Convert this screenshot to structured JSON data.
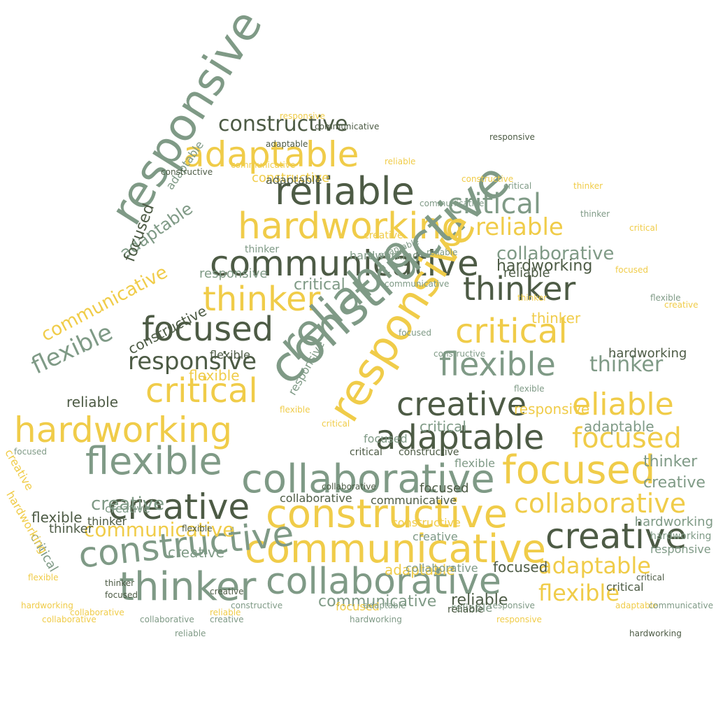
{
  "colors": {
    "background": "#ffffff",
    "dark": "#4d5b45",
    "sage": "#7f9a86",
    "gold": "#f0cc49"
  },
  "words": [
    {
      "text": "communicative",
      "color": "dark"
    },
    {
      "text": "hardworking",
      "color": "gold"
    },
    {
      "text": "responsive",
      "color": "sage"
    },
    {
      "text": "reliable",
      "color": "dark"
    },
    {
      "text": "adaptable",
      "color": "gold"
    },
    {
      "text": "constructive",
      "color": "dark"
    },
    {
      "text": "critical",
      "color": "sage"
    },
    {
      "text": "reliable",
      "color": "gold"
    },
    {
      "text": "thinker",
      "color": "dark"
    },
    {
      "text": "thinker",
      "color": "gold"
    },
    {
      "text": "focused",
      "color": "dark"
    },
    {
      "text": "critical",
      "color": "gold"
    },
    {
      "text": "responsive",
      "color": "dark"
    },
    {
      "text": "flexible",
      "color": "sage"
    },
    {
      "text": "thinker",
      "color": "sage"
    },
    {
      "text": "reliable",
      "color": "sage"
    },
    {
      "text": "constructive",
      "color": "sage"
    },
    {
      "text": "responsive",
      "color": "gold"
    },
    {
      "text": "creative",
      "color": "dark"
    },
    {
      "text": "eliable",
      "color": "gold"
    },
    {
      "text": "critical",
      "color": "gold"
    },
    {
      "text": "hardworking",
      "color": "gold"
    },
    {
      "text": "flexible",
      "color": "sage"
    },
    {
      "text": "adaptable",
      "color": "dark"
    },
    {
      "text": "focused",
      "color": "gold"
    },
    {
      "text": "focused",
      "color": "gold"
    },
    {
      "text": "collaborative",
      "color": "sage"
    },
    {
      "text": "creative",
      "color": "dark"
    },
    {
      "text": "constructive",
      "color": "gold"
    },
    {
      "text": "collaborative",
      "color": "gold"
    },
    {
      "text": "creative",
      "color": "dark"
    },
    {
      "text": "communicative",
      "color": "gold"
    },
    {
      "text": "constructive",
      "color": "sage"
    },
    {
      "text": "collaborative",
      "color": "sage"
    },
    {
      "text": "thinker",
      "color": "sage"
    },
    {
      "text": "communicative",
      "color": "gold"
    },
    {
      "text": "adaptable",
      "color": "gold"
    },
    {
      "text": "flexible",
      "color": "gold"
    },
    {
      "text": "focused",
      "color": "dark"
    },
    {
      "text": "communicative",
      "color": "sage"
    },
    {
      "text": "reliable",
      "color": "dark"
    },
    {
      "text": "constructive",
      "color": "gold"
    },
    {
      "text": "collaborative",
      "color": "sage"
    },
    {
      "text": "hardworking",
      "color": "dark"
    },
    {
      "text": "flexible",
      "color": "sage"
    },
    {
      "text": "thinker",
      "color": "sage"
    },
    {
      "text": "creative",
      "color": "sage"
    },
    {
      "text": "adaptable",
      "color": "sage"
    },
    {
      "text": "responsive",
      "color": "sage"
    },
    {
      "text": "hardworking",
      "color": "sage"
    },
    {
      "text": "critical",
      "color": "sage"
    },
    {
      "text": "focused",
      "color": "dark"
    },
    {
      "text": "communicative",
      "color": "gold"
    },
    {
      "text": "flexible",
      "color": "gold"
    },
    {
      "text": "creative",
      "color": "sage"
    },
    {
      "text": "constructive",
      "color": "dark"
    },
    {
      "text": "reliable",
      "color": "dark"
    },
    {
      "text": "critical",
      "color": "sage"
    },
    {
      "text": "adaptable",
      "color": "sage"
    },
    {
      "text": "flexible",
      "color": "sage"
    },
    {
      "text": "reliable",
      "color": "dark"
    },
    {
      "text": "hardworking",
      "color": "dark"
    },
    {
      "text": "creative",
      "color": "sage"
    },
    {
      "text": "adaptable",
      "color": "gold"
    },
    {
      "text": "responsive",
      "color": "sage"
    },
    {
      "text": "constructive",
      "color": "gold"
    },
    {
      "text": "thinker",
      "color": "gold"
    },
    {
      "text": "focused",
      "color": "dark"
    },
    {
      "text": "flexible",
      "color": "dark"
    },
    {
      "text": "collaborative",
      "color": "dark"
    },
    {
      "text": "communicative",
      "color": "dark"
    },
    {
      "text": "thinker",
      "color": "dark"
    },
    {
      "text": "critical",
      "color": "dark"
    },
    {
      "text": "reliable",
      "color": "sage"
    },
    {
      "text": "responsive",
      "color": "gold"
    },
    {
      "text": "adaptable",
      "color": "sage"
    },
    {
      "text": "hardworking",
      "color": "sage"
    },
    {
      "text": "creative",
      "color": "sage"
    },
    {
      "text": "focused",
      "color": "gold"
    },
    {
      "text": "critical",
      "color": "sage"
    },
    {
      "text": "thinker",
      "color": "sage"
    },
    {
      "text": "flexible",
      "color": "dark"
    },
    {
      "text": "creative",
      "color": "sage"
    },
    {
      "text": "collaborative",
      "color": "sage"
    },
    {
      "text": "hardworking",
      "color": "sage"
    },
    {
      "text": "responsive",
      "color": "sage"
    },
    {
      "text": "constructive",
      "color": "dark"
    },
    {
      "text": "critical",
      "color": "dark"
    },
    {
      "text": "adaptable",
      "color": "dark"
    },
    {
      "text": "focused",
      "color": "sage"
    },
    {
      "text": "reliable",
      "color": "dark"
    },
    {
      "text": "thinker",
      "color": "dark"
    },
    {
      "text": "creative",
      "color": "gold"
    },
    {
      "text": "flexible",
      "color": "gold"
    },
    {
      "text": "communicative",
      "color": "sage"
    },
    {
      "text": "hardworking",
      "color": "gold"
    },
    {
      "text": "reliable",
      "color": "gold"
    },
    {
      "text": "constructive",
      "color": "sage"
    },
    {
      "text": "adaptable",
      "color": "sage"
    },
    {
      "text": "critical",
      "color": "gold"
    },
    {
      "text": "collaborative",
      "color": "gold"
    },
    {
      "text": "thinker",
      "color": "gold"
    },
    {
      "text": "focused",
      "color": "sage"
    },
    {
      "text": "flexible",
      "color": "sage"
    },
    {
      "text": "creative",
      "color": "gold"
    },
    {
      "text": "responsive",
      "color": "gold"
    },
    {
      "text": "communicative",
      "color": "sage"
    },
    {
      "text": "reliable",
      "color": "sage"
    },
    {
      "text": "critical",
      "color": "dark"
    },
    {
      "text": "flexible",
      "color": "dark"
    },
    {
      "text": "thinker",
      "color": "dark"
    },
    {
      "text": "focused",
      "color": "dark"
    },
    {
      "text": "creative",
      "color": "dark"
    },
    {
      "text": "collaborative",
      "color": "dark"
    },
    {
      "text": "hardworking",
      "color": "dark"
    },
    {
      "text": "responsive",
      "color": "dark"
    },
    {
      "text": "constructive",
      "color": "dark"
    },
    {
      "text": "adaptable",
      "color": "dark"
    },
    {
      "text": "communicative",
      "color": "dark"
    },
    {
      "text": "reliable",
      "color": "gold"
    },
    {
      "text": "critical",
      "color": "gold"
    },
    {
      "text": "flexible",
      "color": "gold"
    },
    {
      "text": "thinker",
      "color": "gold"
    },
    {
      "text": "focused",
      "color": "gold"
    },
    {
      "text": "creative",
      "color": "gold"
    },
    {
      "text": "collaborative",
      "color": "gold"
    },
    {
      "text": "hardworking",
      "color": "gold"
    },
    {
      "text": "responsive",
      "color": "gold"
    },
    {
      "text": "constructive",
      "color": "gold"
    },
    {
      "text": "adaptable",
      "color": "gold"
    },
    {
      "text": "communicative",
      "color": "gold"
    },
    {
      "text": "reliable",
      "color": "sage"
    },
    {
      "text": "critical",
      "color": "sage"
    },
    {
      "text": "flexible",
      "color": "sage"
    },
    {
      "text": "thinker",
      "color": "sage"
    },
    {
      "text": "focused",
      "color": "sage"
    },
    {
      "text": "creative",
      "color": "sage"
    },
    {
      "text": "collaborative",
      "color": "sage"
    },
    {
      "text": "hardworking",
      "color": "sage"
    },
    {
      "text": "responsive",
      "color": "sage"
    },
    {
      "text": "constructive",
      "color": "sage"
    },
    {
      "text": "adaptable",
      "color": "sage"
    },
    {
      "text": "communicative",
      "color": "sage"
    }
  ]
}
